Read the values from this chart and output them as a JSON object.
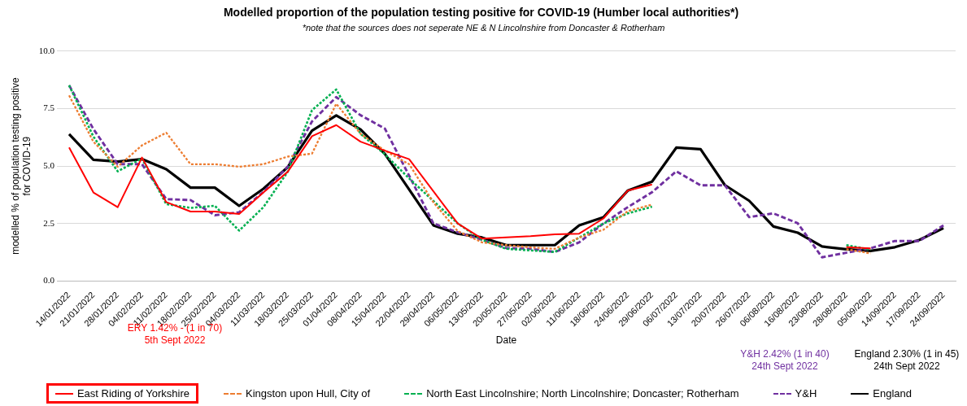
{
  "chart_data": {
    "type": "line",
    "title": "Modelled proportion of the population testing positive for COVID-19 (Humber local authorities*)",
    "subtitle": "*note that the sources does not seperate NE & N Lincolnshire from Doncaster & Rotherham",
    "xlabel": "Date",
    "ylabel": "modelled % of population testing positive\nfor COVID-19",
    "categories": [
      "14/01/2022",
      "21/01/2022",
      "28/01/2022",
      "04/02/2022",
      "11/02/2022",
      "18/02/2022",
      "25/02/2022",
      "04/03/2022",
      "11/03/2022",
      "18/03/2022",
      "25/03/2022",
      "01/04/2022",
      "08/04/2022",
      "15/04/2022",
      "22/04/2022",
      "29/04/2022",
      "06/05/2022",
      "13/05/2022",
      "20/05/2022",
      "27/05/2022",
      "02/06/2022",
      "11/06/2022",
      "18/06/2022",
      "24/06/2022",
      "29/06/2022",
      "06/07/2022",
      "13/07/2022",
      "20/07/2022",
      "26/07/2022",
      "06/08/2022",
      "16/08/2022",
      "23/08/2022",
      "28/08/2022",
      "05/09/2022",
      "14/09/2022",
      "17/09/2022",
      "24/09/2022"
    ],
    "series": [
      {
        "name": "East Riding of Yorkshire",
        "color": "#ff0000",
        "line_style": "solid",
        "values": [
          5.81,
          3.85,
          3.21,
          5.37,
          3.43,
          3.02,
          3.02,
          2.91,
          3.85,
          4.75,
          6.3,
          6.78,
          6.06,
          5.67,
          5.3,
          3.9,
          2.5,
          1.84,
          1.9,
          1.95,
          2.03,
          2.06,
          2.72,
          3.93,
          4.2,
          null,
          null,
          null,
          null,
          null,
          null,
          null,
          1.47,
          1.42,
          null,
          null,
          null
        ]
      },
      {
        "name": "Kingston upon Hull, City of",
        "color": "#ed7d31",
        "line_style": "dotted",
        "values": [
          8.07,
          6.06,
          4.97,
          5.9,
          6.45,
          5.08,
          5.08,
          4.97,
          5.08,
          5.41,
          5.54,
          7.71,
          6.4,
          5.67,
          5.08,
          3.42,
          2.17,
          1.68,
          1.56,
          1.46,
          1.4,
          1.89,
          2.23,
          3.04,
          3.32,
          null,
          null,
          null,
          null,
          null,
          null,
          null,
          1.38,
          1.2,
          null,
          null,
          null
        ]
      },
      {
        "name": "North East Lincolnshire; North Lincolnshire; Doncaster; Rotherham",
        "color": "#00b050",
        "line_style": "dotted",
        "values": [
          8.51,
          6.28,
          4.77,
          5.33,
          3.34,
          3.18,
          3.27,
          2.19,
          3.21,
          4.75,
          7.43,
          8.33,
          6.4,
          5.51,
          4.46,
          3.48,
          2.5,
          1.79,
          1.4,
          1.33,
          1.26,
          1.89,
          2.5,
          2.94,
          3.23,
          null,
          null,
          null,
          null,
          null,
          null,
          null,
          1.56,
          1.36,
          null,
          null,
          null
        ]
      },
      {
        "name": "Y&H",
        "color": "#7030a0",
        "line_style": "dashed",
        "values": [
          8.51,
          6.61,
          5.08,
          5.08,
          3.56,
          3.52,
          2.86,
          2.99,
          3.87,
          4.97,
          6.94,
          8.0,
          7.21,
          6.63,
          4.58,
          2.5,
          2.12,
          1.79,
          1.43,
          1.4,
          1.26,
          1.68,
          2.5,
          3.21,
          3.86,
          4.77,
          4.16,
          4.16,
          2.78,
          2.94,
          2.51,
          1.03,
          1.23,
          1.42,
          1.74,
          1.74,
          2.42
        ]
      },
      {
        "name": "England",
        "color": "#000000",
        "line_style": "solid",
        "values": [
          6.39,
          5.27,
          5.19,
          5.3,
          4.86,
          4.06,
          4.06,
          3.27,
          4.01,
          4.95,
          6.54,
          7.2,
          6.59,
          5.53,
          3.98,
          2.42,
          2.06,
          1.89,
          1.56,
          1.56,
          1.56,
          2.42,
          2.77,
          3.93,
          4.32,
          5.8,
          5.73,
          4.17,
          3.49,
          2.37,
          2.1,
          1.5,
          1.38,
          1.31,
          1.47,
          1.78,
          2.3
        ]
      }
    ],
    "ylim": [
      0,
      10
    ],
    "yticks": [
      {
        "value": 0,
        "label": "0.0"
      },
      {
        "value": 2.5,
        "label": "2.5"
      },
      {
        "value": 5,
        "label": "5.0"
      },
      {
        "value": 7.5,
        "label": "7.5"
      },
      {
        "value": 10,
        "label": "10.0"
      }
    ],
    "grid": "y",
    "legend": "bottom",
    "marker": "none",
    "annotations": [
      "ERY 1.42% - (1 in 70)\n5th Sept 2022",
      "Y&H 2.42% (1 in 40)\n24th Sept 2022",
      "England 2.30% (1 in 45)\n24th Sept 2022"
    ]
  }
}
